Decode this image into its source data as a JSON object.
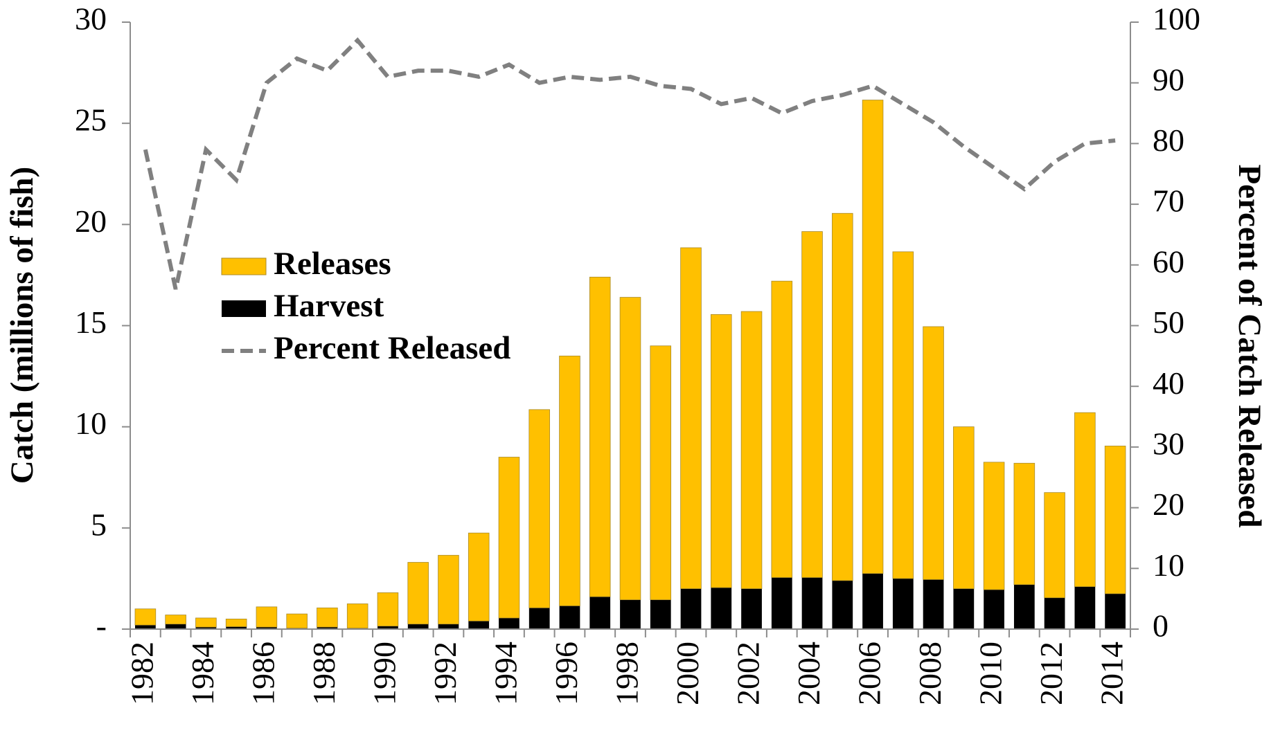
{
  "chart_data": {
    "type": "bar",
    "stacked": true,
    "y_label": "Catch (millions of fish)",
    "y2_label": "Percent of Catch Released",
    "categories": [
      "1982",
      null,
      "1984",
      null,
      "1986",
      null,
      "1988",
      null,
      "1990",
      null,
      "1992",
      null,
      "1994",
      null,
      "1996",
      null,
      "1998",
      null,
      "2000",
      null,
      "2002",
      null,
      "2004",
      null,
      "2006",
      null,
      "2008",
      null,
      "2010",
      null,
      "2012",
      null,
      "2014"
    ],
    "series": [
      {
        "name": "Harvest",
        "type": "bar",
        "color": "#000000",
        "values": [
          0.2,
          0.25,
          0.1,
          0.12,
          0.1,
          0.05,
          0.1,
          0.05,
          0.15,
          0.25,
          0.25,
          0.4,
          0.55,
          1.05,
          1.15,
          1.6,
          1.45,
          1.45,
          2.0,
          2.05,
          2.0,
          2.55,
          2.55,
          2.4,
          2.75,
          2.5,
          2.45,
          2.0,
          1.95,
          2.2,
          1.55,
          2.1,
          1.75
        ]
      },
      {
        "name": "Releases",
        "type": "bar",
        "color": "#ffc000",
        "values": [
          0.8,
          0.45,
          0.45,
          0.38,
          1.0,
          0.7,
          0.95,
          1.2,
          1.65,
          3.05,
          3.4,
          4.35,
          7.95,
          9.8,
          12.35,
          15.8,
          14.95,
          12.55,
          16.85,
          13.5,
          13.7,
          14.65,
          17.1,
          18.15,
          23.4,
          16.15,
          12.5,
          8.0,
          6.3,
          6.0,
          5.2,
          8.6,
          7.3
        ]
      },
      {
        "name": "Percent Released",
        "type": "line",
        "axis": "y2",
        "color": "#808080",
        "dashed": true,
        "values": [
          79,
          56,
          79,
          74,
          90,
          94,
          92,
          97,
          91,
          92,
          92,
          91,
          93,
          90,
          91,
          90.5,
          91,
          89.5,
          89,
          86.5,
          87.5,
          85,
          87,
          88,
          89.5,
          86.5,
          83.5,
          79.5,
          76,
          72.5,
          77,
          80,
          80.5
        ]
      }
    ],
    "legend_order": [
      "Releases",
      "Harvest",
      "Percent Released"
    ],
    "ylim": [
      0,
      30
    ],
    "yticks": [
      {
        "value": 0,
        "label": "-"
      },
      5,
      10,
      15,
      20,
      25,
      30
    ],
    "y2lim": [
      0,
      100
    ],
    "y2ticks": [
      0,
      10,
      20,
      30,
      40,
      50,
      60,
      70,
      80,
      90,
      100
    ]
  }
}
